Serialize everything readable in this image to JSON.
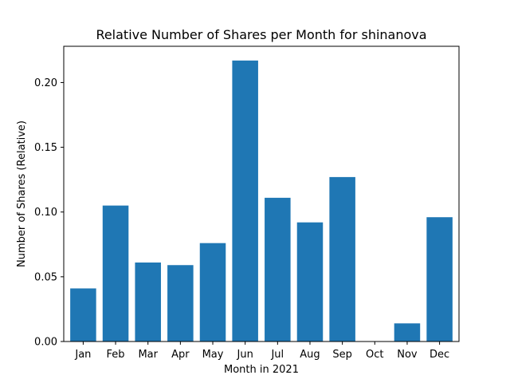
{
  "chart_data": {
    "type": "bar",
    "title": "Relative Number of Shares per Month for shinanova",
    "xlabel": "Month in 2021",
    "ylabel": "Number of Shares (Relative)",
    "categories": [
      "Jan",
      "Feb",
      "Mar",
      "Apr",
      "May",
      "Jun",
      "Jul",
      "Aug",
      "Sep",
      "Oct",
      "Nov",
      "Dec"
    ],
    "values": [
      0.041,
      0.105,
      0.061,
      0.059,
      0.076,
      0.217,
      0.111,
      0.092,
      0.127,
      0.0,
      0.014,
      0.096
    ],
    "ylim": [
      0,
      0.228
    ],
    "yticks": [
      0.0,
      0.05,
      0.1,
      0.15,
      0.2
    ],
    "ytick_labels": [
      "0.00",
      "0.05",
      "0.10",
      "0.15",
      "0.20"
    ],
    "bar_color": "#1f77b4",
    "grid": false,
    "legend": "none"
  }
}
